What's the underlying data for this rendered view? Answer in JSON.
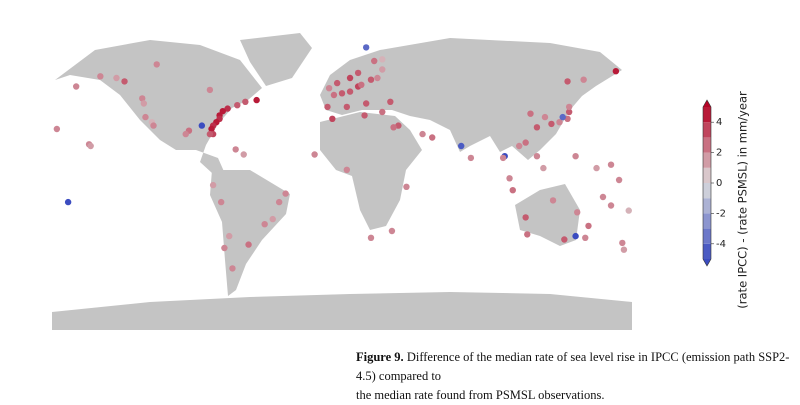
{
  "map": {
    "colorbar": {
      "label": "(rate IPCC) - (rate PSMSL) in mm/year",
      "clim": [
        -5,
        5
      ],
      "ticks": [
        -4,
        -2,
        0,
        2,
        4
      ],
      "colormap": [
        "#3b4cc0",
        "#dddddd",
        "#b40426"
      ]
    },
    "stations": [
      {
        "lon": -71,
        "lat": 42,
        "value": 4
      },
      {
        "lon": -74,
        "lat": 40.5,
        "value": 4.5
      },
      {
        "lon": -76,
        "lat": 38,
        "value": 4.5
      },
      {
        "lon": -76,
        "lat": 36,
        "value": 4
      },
      {
        "lon": -78,
        "lat": 34,
        "value": 4.5
      },
      {
        "lon": -80,
        "lat": 32,
        "value": 4
      },
      {
        "lon": -81,
        "lat": 30,
        "value": 4.5
      },
      {
        "lon": -80,
        "lat": 27,
        "value": 3.5
      },
      {
        "lon": -82,
        "lat": 27,
        "value": 3
      },
      {
        "lon": -87,
        "lat": 32,
        "value": -5
      },
      {
        "lon": -95,
        "lat": 29,
        "value": 2.5
      },
      {
        "lon": -97,
        "lat": 27,
        "value": 2
      },
      {
        "lon": -65,
        "lat": 44,
        "value": 3
      },
      {
        "lon": -60,
        "lat": 46,
        "value": 3
      },
      {
        "lon": -53,
        "lat": 47,
        "value": 4.5
      },
      {
        "lon": -66,
        "lat": 18,
        "value": 2
      },
      {
        "lon": -61,
        "lat": 15,
        "value": 1.5
      },
      {
        "lon": -124,
        "lat": 48,
        "value": 2
      },
      {
        "lon": -123,
        "lat": 45,
        "value": 1.5
      },
      {
        "lon": -122,
        "lat": 37,
        "value": 2
      },
      {
        "lon": -118,
        "lat": 34,
        "value": 1
      },
      {
        "lon": -117,
        "lat": 32,
        "value": 2
      },
      {
        "lon": -135,
        "lat": 58,
        "value": 3
      },
      {
        "lon": -150,
        "lat": 61,
        "value": 2
      },
      {
        "lon": -165,
        "lat": 55,
        "value": 2
      },
      {
        "lon": -140,
        "lat": 60,
        "value": 1.5
      },
      {
        "lon": -157,
        "lat": 21,
        "value": 2
      },
      {
        "lon": -156,
        "lat": 20,
        "value": 1.5
      },
      {
        "lon": -170,
        "lat": -13,
        "value": -5
      },
      {
        "lon": -177,
        "lat": 30,
        "value": 2
      },
      {
        "lon": -115,
        "lat": 68,
        "value": 2
      },
      {
        "lon": -82,
        "lat": 53,
        "value": 2
      },
      {
        "lon": 5,
        "lat": 52,
        "value": 3
      },
      {
        "lon": 0,
        "lat": 51,
        "value": 3
      },
      {
        "lon": -5,
        "lat": 50,
        "value": 2.5
      },
      {
        "lon": -9,
        "lat": 43,
        "value": 3
      },
      {
        "lon": -6,
        "lat": 36,
        "value": 3.5
      },
      {
        "lon": 3,
        "lat": 43,
        "value": 3
      },
      {
        "lon": 10,
        "lat": 55,
        "value": 3.5
      },
      {
        "lon": 12,
        "lat": 56,
        "value": 2.5
      },
      {
        "lon": 18,
        "lat": 59,
        "value": 3
      },
      {
        "lon": 22,
        "lat": 60,
        "value": 2
      },
      {
        "lon": 25,
        "lat": 65,
        "value": 1.5
      },
      {
        "lon": 20,
        "lat": 70,
        "value": 2.5
      },
      {
        "lon": 10,
        "lat": 63,
        "value": 3
      },
      {
        "lon": 5,
        "lat": 60,
        "value": 3.5
      },
      {
        "lon": 15,
        "lat": 45,
        "value": 3
      },
      {
        "lon": 25,
        "lat": 40,
        "value": 2.5
      },
      {
        "lon": 30,
        "lat": 46,
        "value": 3
      },
      {
        "lon": 35,
        "lat": 32,
        "value": 3
      },
      {
        "lon": 14,
        "lat": 38,
        "value": 3
      },
      {
        "lon": -3,
        "lat": 57,
        "value": 3
      },
      {
        "lon": -8,
        "lat": 54,
        "value": 2
      },
      {
        "lon": 15,
        "lat": 78,
        "value": -4
      },
      {
        "lon": 25,
        "lat": 71,
        "value": 1
      },
      {
        "lon": 140,
        "lat": 58,
        "value": 3
      },
      {
        "lon": 170,
        "lat": 64,
        "value": 4.5
      },
      {
        "lon": 150,
        "lat": 59,
        "value": 2
      },
      {
        "lon": 121,
        "lat": 31,
        "value": 3
      },
      {
        "lon": 117,
        "lat": 39,
        "value": 2.5
      },
      {
        "lon": 114,
        "lat": 22,
        "value": 2.5
      },
      {
        "lon": 126,
        "lat": 37,
        "value": 2
      },
      {
        "lon": 130,
        "lat": 33,
        "value": 3
      },
      {
        "lon": 135,
        "lat": 34,
        "value": 2
      },
      {
        "lon": 140,
        "lat": 36,
        "value": 2.5
      },
      {
        "lon": 141,
        "lat": 40,
        "value": 3
      },
      {
        "lon": 141,
        "lat": 43,
        "value": 2
      },
      {
        "lon": 137,
        "lat": 37,
        "value": -4
      },
      {
        "lon": 74,
        "lat": 20,
        "value": -4.5
      },
      {
        "lon": 80,
        "lat": 13,
        "value": 2
      },
      {
        "lon": 101,
        "lat": 14,
        "value": -5
      },
      {
        "lon": 100,
        "lat": 13,
        "value": 2
      },
      {
        "lon": 104,
        "lat": 1,
        "value": 2
      },
      {
        "lon": 106,
        "lat": -6,
        "value": 2.5
      },
      {
        "lon": 110,
        "lat": 20,
        "value": 2
      },
      {
        "lon": 121,
        "lat": 14,
        "value": 2
      },
      {
        "lon": 125,
        "lat": 7,
        "value": 1.5
      },
      {
        "lon": 50,
        "lat": 27,
        "value": 2
      },
      {
        "lon": 56,
        "lat": 25,
        "value": 2.5
      },
      {
        "lon": 32,
        "lat": 31,
        "value": 2.5
      },
      {
        "lon": 18,
        "lat": -34,
        "value": 2
      },
      {
        "lon": 31,
        "lat": -30,
        "value": 2
      },
      {
        "lon": 40,
        "lat": -4,
        "value": 2
      },
      {
        "lon": -17,
        "lat": 15,
        "value": 2
      },
      {
        "lon": 3,
        "lat": 6,
        "value": 2
      },
      {
        "lon": 115,
        "lat": -32,
        "value": 2.5
      },
      {
        "lon": 138,
        "lat": -35,
        "value": 3
      },
      {
        "lon": 145,
        "lat": -33,
        "value": -5
      },
      {
        "lon": 151,
        "lat": -34,
        "value": 2
      },
      {
        "lon": 153,
        "lat": -27,
        "value": 2.5
      },
      {
        "lon": 146,
        "lat": -19,
        "value": 2
      },
      {
        "lon": 131,
        "lat": -12,
        "value": 2
      },
      {
        "lon": 114,
        "lat": -22,
        "value": 3
      },
      {
        "lon": 174,
        "lat": -37,
        "value": 2
      },
      {
        "lon": 175,
        "lat": -41,
        "value": 1.5
      },
      {
        "lon": 145,
        "lat": 14,
        "value": 2
      },
      {
        "lon": 158,
        "lat": 7,
        "value": 1.5
      },
      {
        "lon": 167,
        "lat": 9,
        "value": 2
      },
      {
        "lon": 172,
        "lat": 0,
        "value": 2
      },
      {
        "lon": 162,
        "lat": -10,
        "value": 2
      },
      {
        "lon": 167,
        "lat": -15,
        "value": 2
      },
      {
        "lon": 178,
        "lat": -18,
        "value": 1
      },
      {
        "lon": -70,
        "lat": -33,
        "value": 1.5
      },
      {
        "lon": -73,
        "lat": -40,
        "value": 2
      },
      {
        "lon": -58,
        "lat": -38,
        "value": 2.5
      },
      {
        "lon": -48,
        "lat": -26,
        "value": 2
      },
      {
        "lon": -43,
        "lat": -23,
        "value": 1.5
      },
      {
        "lon": -39,
        "lat": -13,
        "value": 2
      },
      {
        "lon": -80,
        "lat": -3,
        "value": 1.5
      },
      {
        "lon": -75,
        "lat": -13,
        "value": 2
      },
      {
        "lon": -68,
        "lat": -52,
        "value": 2
      },
      {
        "lon": -35,
        "lat": -8,
        "value": 2
      }
    ]
  },
  "caption": {
    "label": "Figure 9.",
    "lines": [
      "Difference of the median rate of sea level rise in IPCC (emission path SSP2-4.5) compared to",
      "the median rate found from PSMSL observations."
    ]
  }
}
